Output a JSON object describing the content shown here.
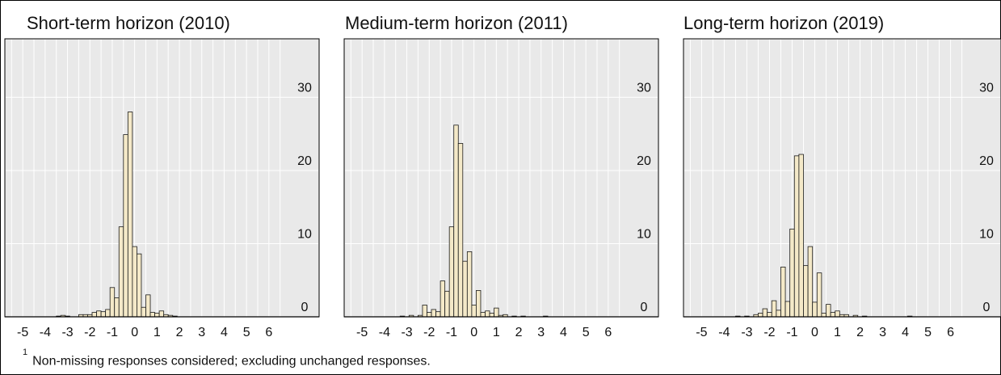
{
  "footnote": {
    "marker": "1",
    "text": "Non-missing responses considered; excluding unchanged responses."
  },
  "style": {
    "plot_bg": "#e9e9e9",
    "grid": "#ffffff",
    "bar_fill": "#f4e9c8",
    "bar_stroke": "#1a1a1a",
    "axis": "#000000"
  },
  "chart_data": [
    {
      "type": "bar",
      "title": "Short-term horizon (2010)",
      "bin_width": 0.2,
      "xlim": [
        -5.8,
        6.8
      ],
      "ylim": [
        0,
        38
      ],
      "x_ticks": [
        -5,
        -4,
        -3,
        -2,
        -1,
        0,
        1,
        2,
        3,
        4,
        5,
        6
      ],
      "y_ticks": [
        0,
        10,
        20,
        30
      ],
      "grid": true,
      "bins": [
        {
          "x": -3.4,
          "y": 0.1
        },
        {
          "x": -3.2,
          "y": 0.2
        },
        {
          "x": -3.0,
          "y": 0.1
        },
        {
          "x": -2.4,
          "y": 0.3
        },
        {
          "x": -2.2,
          "y": 0.3
        },
        {
          "x": -2.0,
          "y": 0.3
        },
        {
          "x": -1.8,
          "y": 0.6
        },
        {
          "x": -1.6,
          "y": 0.8
        },
        {
          "x": -1.4,
          "y": 0.7
        },
        {
          "x": -1.2,
          "y": 1.0
        },
        {
          "x": -1.0,
          "y": 4.0
        },
        {
          "x": -0.8,
          "y": 2.6
        },
        {
          "x": -0.6,
          "y": 12.3
        },
        {
          "x": -0.4,
          "y": 24.9
        },
        {
          "x": -0.2,
          "y": 28.0
        },
        {
          "x": 0.0,
          "y": 9.6
        },
        {
          "x": 0.2,
          "y": 8.6
        },
        {
          "x": 0.4,
          "y": 1.3
        },
        {
          "x": 0.6,
          "y": 3.0
        },
        {
          "x": 0.8,
          "y": 0.6
        },
        {
          "x": 1.0,
          "y": 0.5
        },
        {
          "x": 1.2,
          "y": 0.8
        },
        {
          "x": 1.4,
          "y": 0.3
        },
        {
          "x": 1.6,
          "y": 0.2
        },
        {
          "x": 1.8,
          "y": 0.1
        }
      ]
    },
    {
      "type": "bar",
      "title": "Medium-term horizon (2011)",
      "bin_width": 0.2,
      "xlim": [
        -5.8,
        6.8
      ],
      "ylim": [
        0,
        38
      ],
      "x_ticks": [
        -5,
        -4,
        -3,
        -2,
        -1,
        0,
        1,
        2,
        3,
        4,
        5,
        6
      ],
      "y_ticks": [
        0,
        10,
        20,
        30
      ],
      "grid": true,
      "bins": [
        {
          "x": -3.2,
          "y": 0.1
        },
        {
          "x": -2.8,
          "y": 0.2
        },
        {
          "x": -2.4,
          "y": 0.2
        },
        {
          "x": -2.2,
          "y": 1.6
        },
        {
          "x": -2.0,
          "y": 0.6
        },
        {
          "x": -1.8,
          "y": 1.0
        },
        {
          "x": -1.6,
          "y": 0.7
        },
        {
          "x": -1.4,
          "y": 4.9
        },
        {
          "x": -1.2,
          "y": 3.5
        },
        {
          "x": -1.0,
          "y": 12.3
        },
        {
          "x": -0.8,
          "y": 26.2
        },
        {
          "x": -0.6,
          "y": 23.7
        },
        {
          "x": -0.4,
          "y": 7.6
        },
        {
          "x": -0.2,
          "y": 8.9
        },
        {
          "x": 0.0,
          "y": 1.6
        },
        {
          "x": 0.2,
          "y": 3.6
        },
        {
          "x": 0.4,
          "y": 0.6
        },
        {
          "x": 0.6,
          "y": 0.8
        },
        {
          "x": 0.8,
          "y": 0.5
        },
        {
          "x": 1.0,
          "y": 1.2
        },
        {
          "x": 1.2,
          "y": 0.2
        },
        {
          "x": 1.4,
          "y": 0.3
        },
        {
          "x": 1.8,
          "y": 0.1
        },
        {
          "x": 2.2,
          "y": 0.1
        },
        {
          "x": 3.2,
          "y": 0.1
        }
      ]
    },
    {
      "type": "bar",
      "title": "Long-term horizon (2019)",
      "bin_width": 0.2,
      "xlim": [
        -5.8,
        6.8
      ],
      "ylim": [
        0,
        38
      ],
      "x_ticks": [
        -5,
        -4,
        -3,
        -2,
        -1,
        0,
        1,
        2,
        3,
        4,
        5,
        6
      ],
      "y_ticks": [
        0,
        10,
        20,
        30
      ],
      "grid": true,
      "bins": [
        {
          "x": -3.4,
          "y": 0.1
        },
        {
          "x": -3.0,
          "y": 0.1
        },
        {
          "x": -2.6,
          "y": 0.3
        },
        {
          "x": -2.4,
          "y": 0.5
        },
        {
          "x": -2.2,
          "y": 1.1
        },
        {
          "x": -2.0,
          "y": 0.6
        },
        {
          "x": -1.8,
          "y": 2.2
        },
        {
          "x": -1.6,
          "y": 0.9
        },
        {
          "x": -1.4,
          "y": 6.8
        },
        {
          "x": -1.2,
          "y": 2.1
        },
        {
          "x": -1.0,
          "y": 12.0
        },
        {
          "x": -0.8,
          "y": 22.0
        },
        {
          "x": -0.6,
          "y": 22.2
        },
        {
          "x": -0.4,
          "y": 7.0
        },
        {
          "x": -0.2,
          "y": 9.6
        },
        {
          "x": 0.0,
          "y": 2.0
        },
        {
          "x": 0.2,
          "y": 6.0
        },
        {
          "x": 0.4,
          "y": 0.5
        },
        {
          "x": 0.6,
          "y": 1.7
        },
        {
          "x": 0.8,
          "y": 0.6
        },
        {
          "x": 1.0,
          "y": 0.8
        },
        {
          "x": 1.2,
          "y": 0.3
        },
        {
          "x": 1.4,
          "y": 0.3
        },
        {
          "x": 1.8,
          "y": 0.2
        },
        {
          "x": 2.2,
          "y": 0.1
        },
        {
          "x": 4.2,
          "y": 0.1
        }
      ]
    }
  ]
}
